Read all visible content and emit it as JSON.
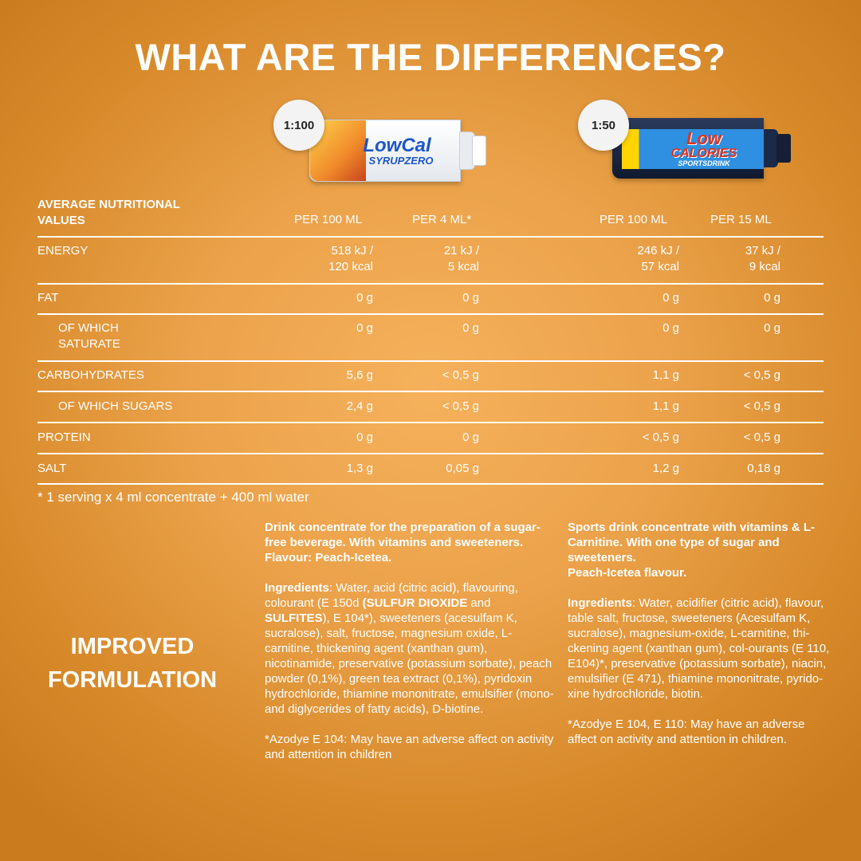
{
  "title": "WHAT ARE THE DIFFERENCES?",
  "products": [
    {
      "ratio": "1:100",
      "brand_line1": "LowCal",
      "brand_line2": "SYRUPZERO",
      "colors": {
        "body": "#f0f2f5",
        "label": "#ffd34d",
        "text": "#1d56c8"
      }
    },
    {
      "ratio": "1:50",
      "brand_line1": "Low",
      "brand_line2": "CALORIES",
      "brand_line3": "SPORTSDRINK",
      "colors": {
        "body": "#1a2a48",
        "label": "#2f8fe0",
        "text": "#e2321e"
      }
    }
  ],
  "table": {
    "header_label": "AVERAGE NUTRITIONAL\nVALUES",
    "columns": [
      "PER 100 ML",
      "PER 4 ML*",
      "PER 100 ML",
      "PER 15 ML"
    ],
    "rows": [
      {
        "label": "ENERGY",
        "values": [
          "518 kJ /\n120 kcal",
          "21 kJ /\n5 kcal",
          "246 kJ /\n57 kcal",
          "37 kJ /\n9 kcal"
        ]
      },
      {
        "label": "FAT",
        "values": [
          "0 g",
          "0 g",
          "0 g",
          "0 g"
        ]
      },
      {
        "label": "OF WHICH\nSATURATE",
        "values": [
          "0 g",
          "0 g",
          "0 g",
          "0 g"
        ]
      },
      {
        "label": "CARBOHYDRATES",
        "values": [
          "5,6 g",
          "< 0,5 g",
          "1,1 g",
          "< 0,5 g"
        ]
      },
      {
        "label": "OF WHICH SUGARS",
        "values": [
          "2,4 g",
          "< 0,5 g",
          "1,1 g",
          "< 0,5 g"
        ]
      },
      {
        "label": "PROTEIN",
        "values": [
          "0 g",
          "0 g",
          "< 0,5 g",
          "< 0,5 g"
        ]
      },
      {
        "label": "SALT",
        "values": [
          "1,3 g",
          "0,05 g",
          "1,2 g",
          "0,18 g"
        ]
      }
    ]
  },
  "footnote": "* 1 serving x 4 ml concentrate + 400 ml water",
  "improved": "IMPROVED FORMULATION",
  "left_desc": {
    "intro": "Drink concentrate for the preparation of a sugar-free beverage. With vitamins and sweeteners.",
    "flavour": "Flavour: Peach-Icetea.",
    "ingredients_label": "Ingredients",
    "ingredients_a": ": Water, acid (citric acid), flavouring, colourant (E 150d ",
    "allergen_1": "(SULFUR DIOXIDE",
    "ingredients_b": " and ",
    "allergen_2": "SULFITES",
    "ingredients_c": "), E 104*), sweeteners (acesulfam K, sucralose), salt, fructose, magnesium oxide, L-carnitine, thickening agent (xanthan gum), nicotinamide, preservative (potassium sorbate), peach powder (0,1%), green tea extract (0,1%), pyridoxin hydrochloride, thiamine mononitrate, emulsifier (mono- and diglycerides of fatty acids), D-biotine.",
    "note": "*Azodye E 104: May have an adverse affect on activity and attention in children"
  },
  "right_desc": {
    "intro": "Sports drink concentrate with vitamins & L-Carnitine. With one type of sugar and sweeteners.",
    "flavour": "Peach-Icetea flavour.",
    "ingredients_label": "Ingredients",
    "ingredients_text": ": Water, acidifier (citric acid), flavour, table salt, fructose, sweeteners (Acesulfam K, sucralose), magnesium-oxide, L-carnitine, thi-ckening agent (xanthan gum), col-ourants (E 110, E104)*, preservative (potassium sorbate), niacin, emulsifier (E 471), thiamine mononitrate, pyrido-xine hydrochloride, biotin.",
    "note": "*Azodye E 104, E 110: May have an adverse affect on activity and attention in children."
  }
}
